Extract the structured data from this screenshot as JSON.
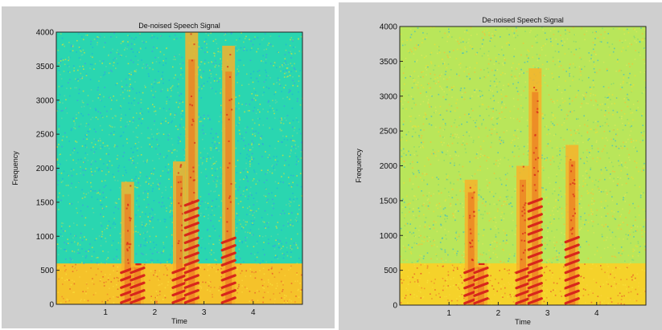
{
  "chart_data": [
    {
      "type": "heatmap",
      "title": "De-noised Speech Signal",
      "xlabel": "Time",
      "ylabel": "Frequency",
      "xlim": [
        0,
        5
      ],
      "ylim": [
        0,
        4000
      ],
      "xticks": [
        1,
        2,
        3,
        4
      ],
      "yticks": [
        0,
        500,
        1000,
        1500,
        2000,
        2500,
        3000,
        3500,
        4000
      ],
      "grid": false,
      "colormap": "jet",
      "noise_floor": {
        "below_600Hz": "yellow-orange",
        "above_600Hz": "cyan-green"
      },
      "speech_segments": [
        {
          "t_center": 1.45,
          "f_max": 1800,
          "harmonics_below_Hz": 600
        },
        {
          "t_center": 1.65,
          "f_max": 600,
          "harmonics_below_Hz": 600
        },
        {
          "t_center": 2.5,
          "f_max": 2100,
          "harmonics_below_Hz": 600
        },
        {
          "t_center": 2.75,
          "f_max": 4000,
          "harmonics_below_Hz": 1500
        },
        {
          "t_center": 3.5,
          "f_max": 3800,
          "harmonics_below_Hz": 1000
        }
      ],
      "colors": {
        "background": "#2ad6b0",
        "low_band": "#f5c22a",
        "speech": "#d7261b"
      }
    },
    {
      "type": "heatmap",
      "title": "De-noised Speech Signal",
      "xlabel": "Time",
      "ylabel": "Frequency",
      "xlim": [
        0,
        5
      ],
      "ylim": [
        0,
        4000
      ],
      "xticks": [
        1,
        2,
        3,
        4
      ],
      "yticks": [
        0,
        500,
        1000,
        1500,
        2000,
        2500,
        3000,
        3500,
        4000
      ],
      "grid": false,
      "colormap": "jet",
      "noise_floor": {
        "below_600Hz": "yellow",
        "above_600Hz": "yellow-green"
      },
      "speech_segments": [
        {
          "t_center": 1.45,
          "f_max": 1800,
          "harmonics_below_Hz": 600
        },
        {
          "t_center": 1.65,
          "f_max": 600,
          "harmonics_below_Hz": 600
        },
        {
          "t_center": 2.5,
          "f_max": 2000,
          "harmonics_below_Hz": 600
        },
        {
          "t_center": 2.75,
          "f_max": 3400,
          "harmonics_below_Hz": 1500
        },
        {
          "t_center": 3.5,
          "f_max": 2300,
          "harmonics_below_Hz": 1000
        }
      ],
      "colors": {
        "background": "#b9e65a",
        "low_band": "#f5d22a",
        "speech": "#d7261b"
      }
    }
  ]
}
